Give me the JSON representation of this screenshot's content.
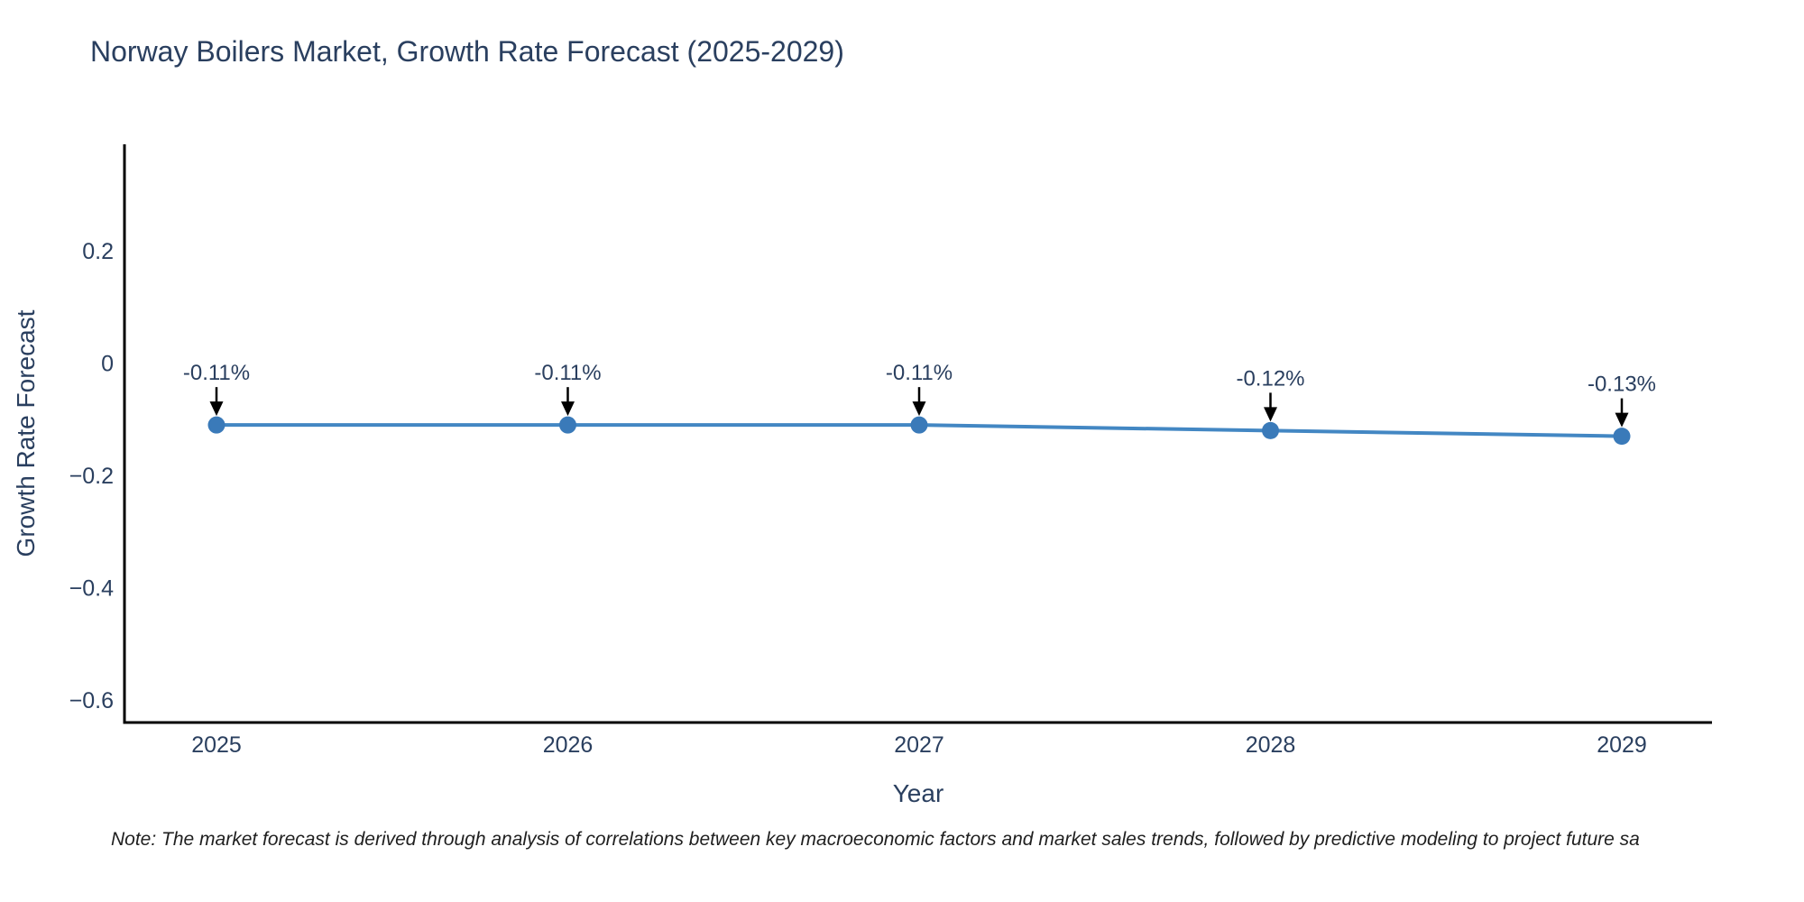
{
  "page": {
    "background": "#ffffff"
  },
  "chart_data": {
    "type": "line",
    "title": "Norway Boilers Market, Growth Rate Forecast (2025-2029)",
    "xlabel": "Year",
    "ylabel": "Growth Rate Forecast",
    "categories": [
      "2025",
      "2026",
      "2027",
      "2028",
      "2029"
    ],
    "series": [
      {
        "name": "Growth Rate Forecast",
        "values": [
          -0.11,
          -0.11,
          -0.11,
          -0.12,
          -0.13
        ]
      }
    ],
    "point_labels": [
      "-0.11%",
      "-0.11%",
      "-0.11%",
      "-0.12%",
      "-0.13%"
    ],
    "yticks": [
      0.2,
      0,
      -0.2,
      -0.4,
      -0.6
    ],
    "ylim": [
      -0.64,
      0.39
    ],
    "grid": false,
    "legend_position": "none",
    "line_color": "#4387c3",
    "marker_color": "#3a7ab9",
    "axis_color": "#000000",
    "text_color": "#2a3f5f",
    "annotation_color": "#2a3f5f",
    "arrow_color": "#000000",
    "note": "Note: The market forecast is derived through analysis of correlations between key macroeconomic factors and market sales trends, followed by predictive modeling to project future sa"
  }
}
